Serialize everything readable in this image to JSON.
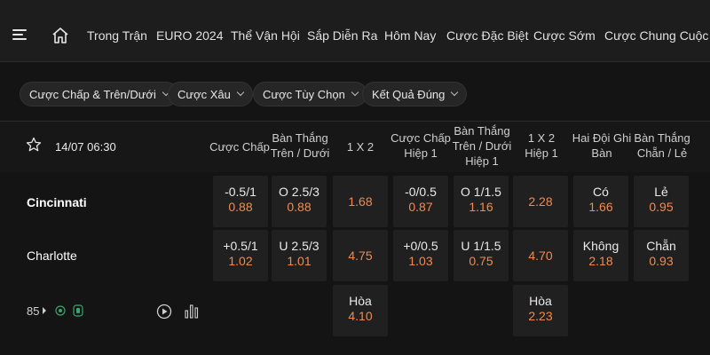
{
  "nav": {
    "items": [
      "Trong Trận",
      "EURO 2024",
      "Thể Vận Hội",
      "Sắp Diễn Ra",
      "Hôm Nay",
      "Cược Đặc Biệt",
      "Cược Sớm",
      "Cược Chung Cuộc"
    ]
  },
  "filters": [
    "Cược Chấp & Trên/Dưới",
    "Cược Xâu",
    "Cược Tùy Chọn",
    "Kết Quả Đúng"
  ],
  "match": {
    "kickoff": "14/07 06:30",
    "columns": [
      "Cược Chấp",
      "Bàn Thắng\nTrên / Dưới",
      "1 X 2",
      "Cược Chấp\nHiệp 1",
      "Bàn Thắng\nTrên / Dưới\nHiệp 1",
      "1 X 2\nHiệp 1",
      "Hai Đội Ghi\nBàn",
      "Bàn Thắng\nChẵn / Lẻ"
    ],
    "home": {
      "name": "Cincinnati",
      "handicap": {
        "line": "-0.5/1",
        "odd": "0.88"
      },
      "over_under": {
        "line": "O 2.5/3",
        "odd": "0.88"
      },
      "x12": {
        "odd": "1.68"
      },
      "h1_handicap": {
        "line": "-0/0.5",
        "odd": "0.87"
      },
      "h1_over_under": {
        "line": "O 1/1.5",
        "odd": "1.16"
      },
      "h1_x12": {
        "odd": "2.28"
      },
      "btts": {
        "line": "Có",
        "odd": "1.66"
      },
      "odd_even": {
        "line": "Lẻ",
        "odd": "0.95"
      }
    },
    "away": {
      "name": "Charlotte",
      "handicap": {
        "line": "+0.5/1",
        "odd": "1.02"
      },
      "over_under": {
        "line": "U 2.5/3",
        "odd": "1.01"
      },
      "x12": {
        "odd": "4.75"
      },
      "h1_handicap": {
        "line": "+0/0.5",
        "odd": "1.03"
      },
      "h1_over_under": {
        "line": "U 1/1.5",
        "odd": "0.75"
      },
      "h1_x12": {
        "odd": "4.70"
      },
      "btts": {
        "line": "Không",
        "odd": "2.18"
      },
      "odd_even": {
        "line": "Chẵn",
        "odd": "0.93"
      }
    },
    "draw": {
      "x12": {
        "line": "Hòa",
        "odd": "4.10"
      },
      "h1_x12": {
        "line": "Hòa",
        "odd": "2.23"
      }
    },
    "more_markets": "85"
  },
  "colors": {
    "odd": "#f08a52",
    "background": "#141414",
    "cell": "#202020"
  },
  "icons": [
    "menu-icon",
    "home-icon",
    "star-icon",
    "play-icon",
    "stats-icon",
    "live-badge-icon"
  ]
}
